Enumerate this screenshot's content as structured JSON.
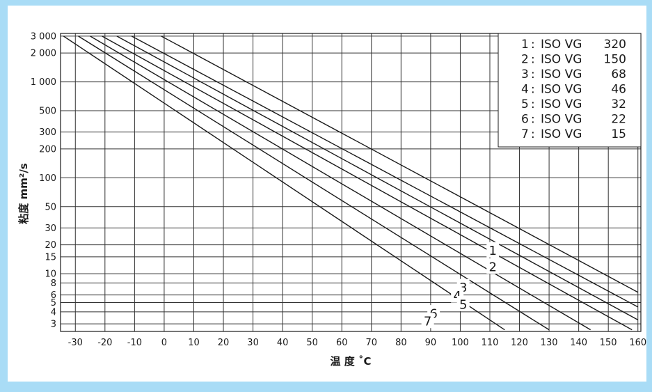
{
  "chart_data": {
    "type": "line",
    "xlabel": "温 度 ˚C",
    "ylabel": "粘度 mm²/s",
    "y_scale": "log",
    "xlim": [
      -35,
      161
    ],
    "ylim": [
      2.5,
      3200
    ],
    "grid": true,
    "legend_position": "top-right",
    "x_ticks": [
      -30,
      -20,
      -10,
      0,
      10,
      20,
      30,
      40,
      50,
      60,
      70,
      80,
      90,
      100,
      110,
      120,
      130,
      140,
      150,
      160
    ],
    "x_tick_labels": [
      "-30",
      "-20",
      "-10",
      "0",
      "10",
      "20",
      "30",
      "40",
      "50",
      "60",
      "70",
      "80",
      "90",
      "100",
      "110",
      "120",
      "130",
      "140",
      "150",
      "160"
    ],
    "y_ticks": [
      3,
      4,
      5,
      6,
      8,
      10,
      15,
      20,
      30,
      50,
      100,
      200,
      300,
      500,
      1000,
      2000,
      3000
    ],
    "y_tick_labels": [
      "3",
      "4",
      "5",
      "6",
      "8",
      "10",
      "15",
      "20",
      "30",
      "50",
      "100",
      "200",
      "300",
      "500",
      "1 000",
      "2 000",
      "3 000"
    ],
    "legend": [
      {
        "num": "1",
        "sep": ":",
        "grade": "ISO VG",
        "value": "320"
      },
      {
        "num": "2",
        "sep": ":",
        "grade": "ISO VG",
        "value": "150"
      },
      {
        "num": "3",
        "sep": ":",
        "grade": "ISO VG",
        "value": "68"
      },
      {
        "num": "4",
        "sep": ":",
        "grade": "ISO VG",
        "value": "46"
      },
      {
        "num": "5",
        "sep": ":",
        "grade": "ISO VG",
        "value": "32"
      },
      {
        "num": "6",
        "sep": ":",
        "grade": "ISO VG",
        "value": "22"
      },
      {
        "num": "7",
        "sep": ":",
        "grade": "ISO VG",
        "value": "15"
      }
    ],
    "series": [
      {
        "name": "1",
        "points": [
          [
            -1,
            3000
          ],
          [
            160,
            6.4
          ]
        ]
      },
      {
        "name": "2",
        "points": [
          [
            -11,
            3000
          ],
          [
            160,
            4.5
          ]
        ]
      },
      {
        "name": "3",
        "points": [
          [
            -16,
            3000
          ],
          [
            160,
            3.3
          ]
        ]
      },
      {
        "name": "4",
        "points": [
          [
            -21,
            3000
          ],
          [
            158,
            2.6
          ]
        ]
      },
      {
        "name": "5",
        "points": [
          [
            -25,
            3000
          ],
          [
            144,
            2.6
          ]
        ]
      },
      {
        "name": "6",
        "points": [
          [
            -29,
            3000
          ],
          [
            130,
            2.6
          ]
        ]
      },
      {
        "name": "7",
        "points": [
          [
            -34,
            3000
          ],
          [
            115,
            2.6
          ]
        ]
      }
    ],
    "curve_labels": [
      {
        "text": "1",
        "x": 111,
        "y": 17.5
      },
      {
        "text": "2",
        "x": 111,
        "y": 11.8
      },
      {
        "text": "3",
        "x": 101,
        "y": 7.2
      },
      {
        "text": "4",
        "x": 99,
        "y": 5.9
      },
      {
        "text": "5",
        "x": 101,
        "y": 4.8
      },
      {
        "text": "6",
        "x": 91,
        "y": 3.85
      },
      {
        "text": "7",
        "x": 89,
        "y": 3.2
      }
    ],
    "colors": {
      "background": "#a9dcf6",
      "panel": "#ffffff",
      "line": "#1a1a1a",
      "grid": "#333333"
    }
  }
}
